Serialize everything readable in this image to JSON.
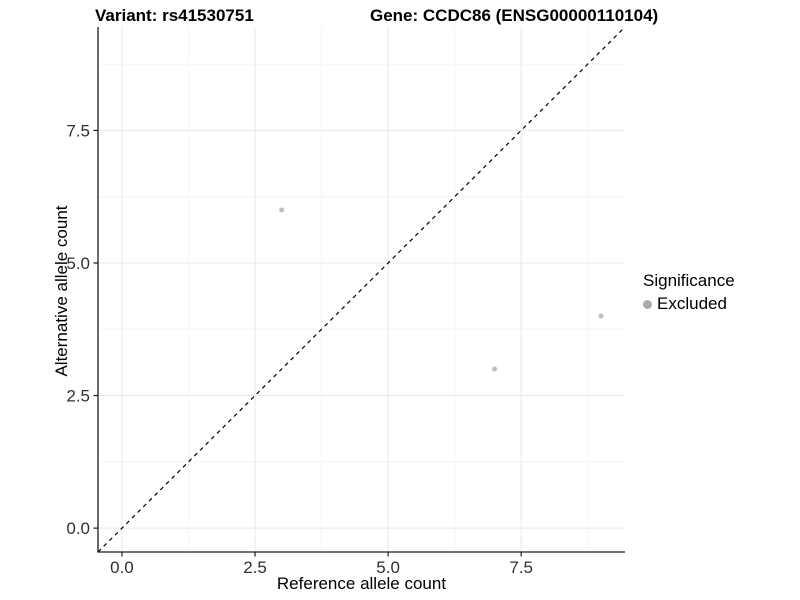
{
  "chart_data": {
    "type": "scatter",
    "title_left": "Variant: rs41530751",
    "title_right": "Gene: CCDC86 (ENSG00000110104)",
    "xlabel": "Reference allele count",
    "ylabel": "Alternative allele count",
    "xlim": [
      -0.45,
      9.45
    ],
    "ylim": [
      -0.45,
      9.45
    ],
    "x_ticks": [
      0.0,
      2.5,
      5.0,
      7.5
    ],
    "y_ticks": [
      0.0,
      2.5,
      5.0,
      7.5
    ],
    "x_minor_ticks": [
      1.25,
      3.75,
      6.25,
      8.75
    ],
    "y_minor_ticks": [
      1.25,
      3.75,
      6.25,
      8.75
    ],
    "grid": true,
    "series": [
      {
        "name": "Excluded",
        "color": "#bebebe",
        "points": [
          {
            "x": 3,
            "y": 6
          },
          {
            "x": 7,
            "y": 3
          },
          {
            "x": 9,
            "y": 4
          }
        ]
      }
    ],
    "reference_line": {
      "type": "identity",
      "slope": 1,
      "intercept": 0,
      "style": "dashed",
      "color": "#000000"
    },
    "legend": {
      "title": "Significance",
      "position": "right",
      "items": [
        {
          "label": "Excluded",
          "color": "#bebebe",
          "marker": "circle"
        }
      ]
    }
  },
  "colors": {
    "point": "#bebebe",
    "legend_dot": "#ababab",
    "grid_major": "#e8e8e8",
    "grid_minor": "#f4f4f4",
    "axis_line": "#1a1a1a",
    "tick_mark": "#1a1a1a",
    "tick_text": "#303030"
  }
}
